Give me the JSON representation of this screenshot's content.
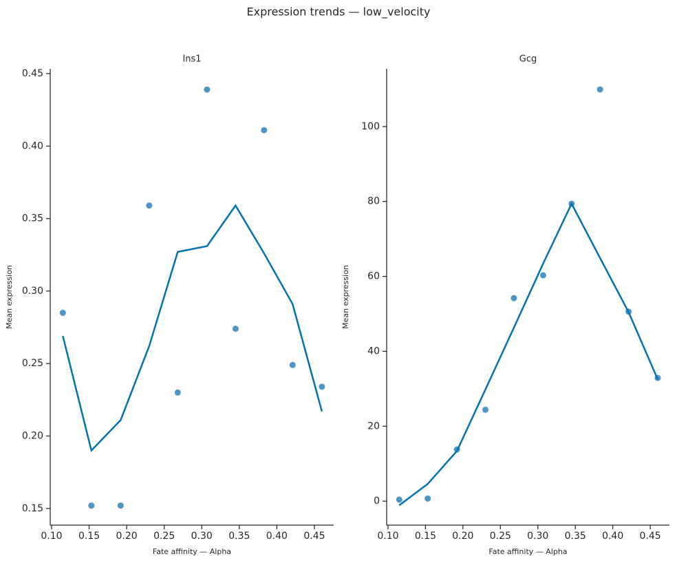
{
  "title": "Expression trends — low_velocity",
  "chart_data": [
    {
      "type": "scatter",
      "title": "Ins1",
      "xlabel": "Fate affinity — Alpha",
      "ylabel": "Mean expression",
      "xlim": [
        0.0982,
        0.4757
      ],
      "ylim": [
        0.1385,
        0.4533
      ],
      "xticks": [
        {
          "value": 0.1,
          "label": "0.10"
        },
        {
          "value": 0.15,
          "label": "0.15"
        },
        {
          "value": 0.2,
          "label": "0.20"
        },
        {
          "value": 0.25,
          "label": "0.25"
        },
        {
          "value": 0.3,
          "label": "0.30"
        },
        {
          "value": 0.35,
          "label": "0.35"
        },
        {
          "value": 0.4,
          "label": "0.40"
        },
        {
          "value": 0.45,
          "label": "0.45"
        }
      ],
      "yticks": [
        {
          "value": 0.15,
          "label": "0.15"
        },
        {
          "value": 0.2,
          "label": "0.20"
        },
        {
          "value": 0.25,
          "label": "0.25"
        },
        {
          "value": 0.3,
          "label": "0.30"
        },
        {
          "value": 0.35,
          "label": "0.35"
        },
        {
          "value": 0.4,
          "label": "0.40"
        },
        {
          "value": 0.45,
          "label": "0.45"
        }
      ],
      "series": [
        {
          "type": "scatter",
          "color": "#1f7bb6",
          "x": [
            0.115,
            0.153,
            0.192,
            0.23,
            0.268,
            0.307,
            0.345,
            0.383,
            0.421,
            0.46
          ],
          "values": [
            0.285,
            0.152,
            0.152,
            0.359,
            0.23,
            0.439,
            0.274,
            0.411,
            0.249,
            0.234
          ]
        },
        {
          "type": "line",
          "color": "#0072b2",
          "x": [
            0.115,
            0.153,
            0.192,
            0.23,
            0.268,
            0.307,
            0.345,
            0.383,
            0.421,
            0.46
          ],
          "values": [
            0.269,
            0.19,
            0.211,
            0.262,
            0.327,
            0.331,
            0.359,
            0.326,
            0.291,
            0.217
          ]
        }
      ]
    },
    {
      "type": "scatter",
      "title": "Gcg",
      "xlabel": "Fate affinity — Alpha",
      "ylabel": "Mean expression",
      "xlim": [
        0.0982,
        0.4756
      ],
      "ylim": [
        -6.4,
        115.4
      ],
      "xticks": [
        {
          "value": 0.1,
          "label": "0.10"
        },
        {
          "value": 0.15,
          "label": "0.15"
        },
        {
          "value": 0.2,
          "label": "0.20"
        },
        {
          "value": 0.25,
          "label": "0.25"
        },
        {
          "value": 0.3,
          "label": "0.30"
        },
        {
          "value": 0.35,
          "label": "0.35"
        },
        {
          "value": 0.4,
          "label": "0.40"
        },
        {
          "value": 0.45,
          "label": "0.45"
        }
      ],
      "yticks": [
        0,
        20,
        40,
        60,
        80,
        100
      ],
      "series": [
        {
          "type": "scatter",
          "color": "#1f7bb6",
          "x": [
            0.115,
            0.153,
            0.192,
            0.23,
            0.268,
            0.307,
            0.345,
            0.383,
            0.421,
            0.46
          ],
          "values": [
            0.4,
            0.7,
            13.8,
            24.4,
            54.2,
            60.3,
            79.4,
            109.9,
            50.6,
            32.9
          ]
        },
        {
          "type": "line",
          "color": "#0072b2",
          "x": [
            0.115,
            0.153,
            0.192,
            0.23,
            0.268,
            0.307,
            0.345,
            0.383,
            0.421,
            0.46
          ],
          "values": [
            -1.1,
            4.6,
            13.4,
            29.8,
            46.3,
            63.4,
            79.4,
            64.9,
            50.5,
            32.5
          ]
        }
      ]
    }
  ]
}
